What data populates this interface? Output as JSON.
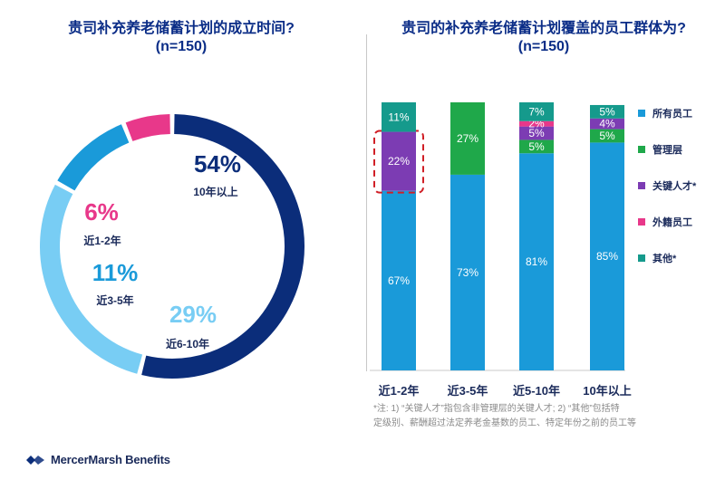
{
  "left_title_line1": "贵司补充养老储蓄计划的成立时间?",
  "left_title_line2": "(n=150)",
  "right_title_line1": "贵司的补充养老储蓄计划覆盖的员工群体为?",
  "right_title_line2": "(n=150)",
  "footnote_line1": "*注: 1) “关键人才”指包含非管理层的关键人才; 2) “其他”包括特",
  "footnote_line2": "定级别、薪酬超过法定养老金基数的员工、特定年份之前的员工等",
  "logo_text": "MercerMarsh Benefits",
  "colors": {
    "navy": "#0b2d7a",
    "light_blue": "#78cdf4",
    "blue": "#1a9ad9",
    "pink": "#e8388a",
    "green": "#1fa84a",
    "purple": "#7c3cb3",
    "teal": "#159a8c",
    "highlight": "#d01f26"
  },
  "chart_data": [
    {
      "type": "pie",
      "title": "贵司补充养老储蓄计划的成立时间?",
      "subtitle": "(n=150)",
      "slices": [
        {
          "label": "10年以上",
          "value": 54,
          "value_label": "54%",
          "color": "#0b2d7a"
        },
        {
          "label": "近6-10年",
          "value": 29,
          "value_label": "29%",
          "color": "#78cdf4"
        },
        {
          "label": "近3-5年",
          "value": 11,
          "value_label": "11%",
          "color": "#1a9ad9"
        },
        {
          "label": "近1-2年",
          "value": 6,
          "value_label": "6%",
          "color": "#e8388a"
        }
      ]
    },
    {
      "type": "bar",
      "stacked": true,
      "title": "贵司的补充养老储蓄计划覆盖的员工群体为?",
      "subtitle": "(n=150)",
      "categories": [
        "近1-2年",
        "近3-5年",
        "近5-10年",
        "10年以上"
      ],
      "series": [
        {
          "name": "所有员工",
          "color": "#1a9ad9",
          "values": [
            67,
            73,
            81,
            85
          ]
        },
        {
          "name": "管理层",
          "color": "#1fa84a",
          "values": [
            0,
            27,
            5,
            5
          ]
        },
        {
          "name": "关键人才*",
          "color": "#7c3cb3",
          "values": [
            22,
            0,
            5,
            4
          ]
        },
        {
          "name": "外籍员工",
          "color": "#e8388a",
          "values": [
            0,
            0,
            2,
            0
          ]
        },
        {
          "name": "其他*",
          "color": "#159a8c",
          "values": [
            11,
            0,
            7,
            5
          ]
        }
      ],
      "ylim": [
        0,
        100
      ],
      "legend": "right",
      "highlight": {
        "category": "近1-2年",
        "series": "关键人才*"
      }
    }
  ]
}
